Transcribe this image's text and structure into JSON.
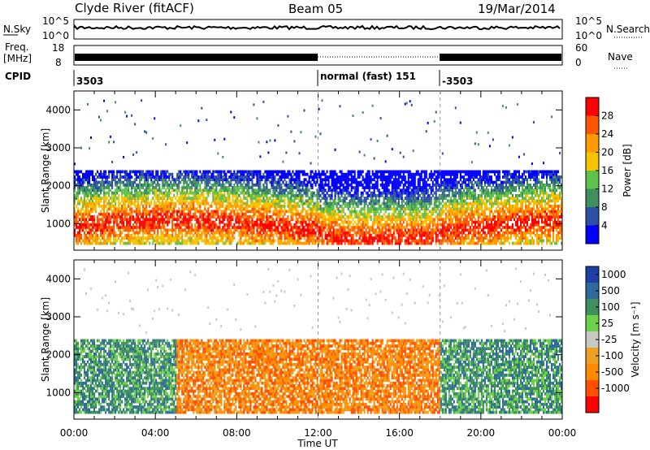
{
  "header": {
    "station": "Clyde River (fitACF)",
    "beam": "Beam 05",
    "date": "19/Mar/2014"
  },
  "strip_labels": {
    "nsky": "N.Sky",
    "nsky_ticks": [
      "10^5",
      "10^0"
    ],
    "nsearch": "N.Search",
    "nsearch_ticks": [
      "10^5",
      "10^0"
    ],
    "freq": "Freq.",
    "freq_unit": "[MHz]",
    "freq_ticks": [
      "18",
      "8"
    ],
    "nave": "Nave",
    "nave_ticks": [
      "60",
      "0"
    ],
    "cpid": "CPID"
  },
  "cpid_segments": [
    {
      "label": "3503",
      "start_hour": 0,
      "end_hour": 12
    },
    {
      "label": "normal (fast) 151",
      "start_hour": 12,
      "end_hour": 18
    },
    {
      "label": "-3503",
      "start_hour": 18,
      "end_hour": 24
    }
  ],
  "colors": {
    "power_scale": [
      "#0000ff",
      "#2e4fa8",
      "#3f8f5f",
      "#5fc24a",
      "#f5c400",
      "#ff9a00",
      "#ff5500",
      "#ff0000"
    ],
    "velocity_scale": [
      "#1c3fa8",
      "#2e6b9c",
      "#3f8f5f",
      "#6fd04a",
      "#c8c8c0",
      "#f0a020",
      "#ff8a00",
      "#ff5000",
      "#ff0000"
    ]
  },
  "chart_data": [
    {
      "type": "heatmap",
      "name": "power",
      "ylabel": "Slant Range [km]",
      "yticks": [
        "1000",
        "2000",
        "3000",
        "4000"
      ],
      "ylim": [
        300,
        4500
      ],
      "xlim": [
        0,
        24
      ],
      "colorbar_label": "Power [dB]",
      "colorbar_ticks": [
        "4",
        "8",
        "12",
        "16",
        "20",
        "24",
        "28"
      ]
    },
    {
      "type": "heatmap",
      "name": "velocity",
      "ylabel": "Slant Range [km]",
      "yticks": [
        "1000",
        "2000",
        "3000",
        "4000"
      ],
      "ylim": [
        300,
        4500
      ],
      "xlim": [
        0,
        24
      ],
      "colorbar_label": "Velocity [m s⁻¹]",
      "colorbar_ticks": [
        "1000",
        "500",
        "100",
        "25",
        "-25",
        "-100",
        "-500",
        "-1000"
      ]
    }
  ],
  "x_axis": {
    "label": "Time UT",
    "ticks": [
      "00:00",
      "04:00",
      "08:00",
      "12:00",
      "16:00",
      "20:00",
      "00:00"
    ]
  }
}
